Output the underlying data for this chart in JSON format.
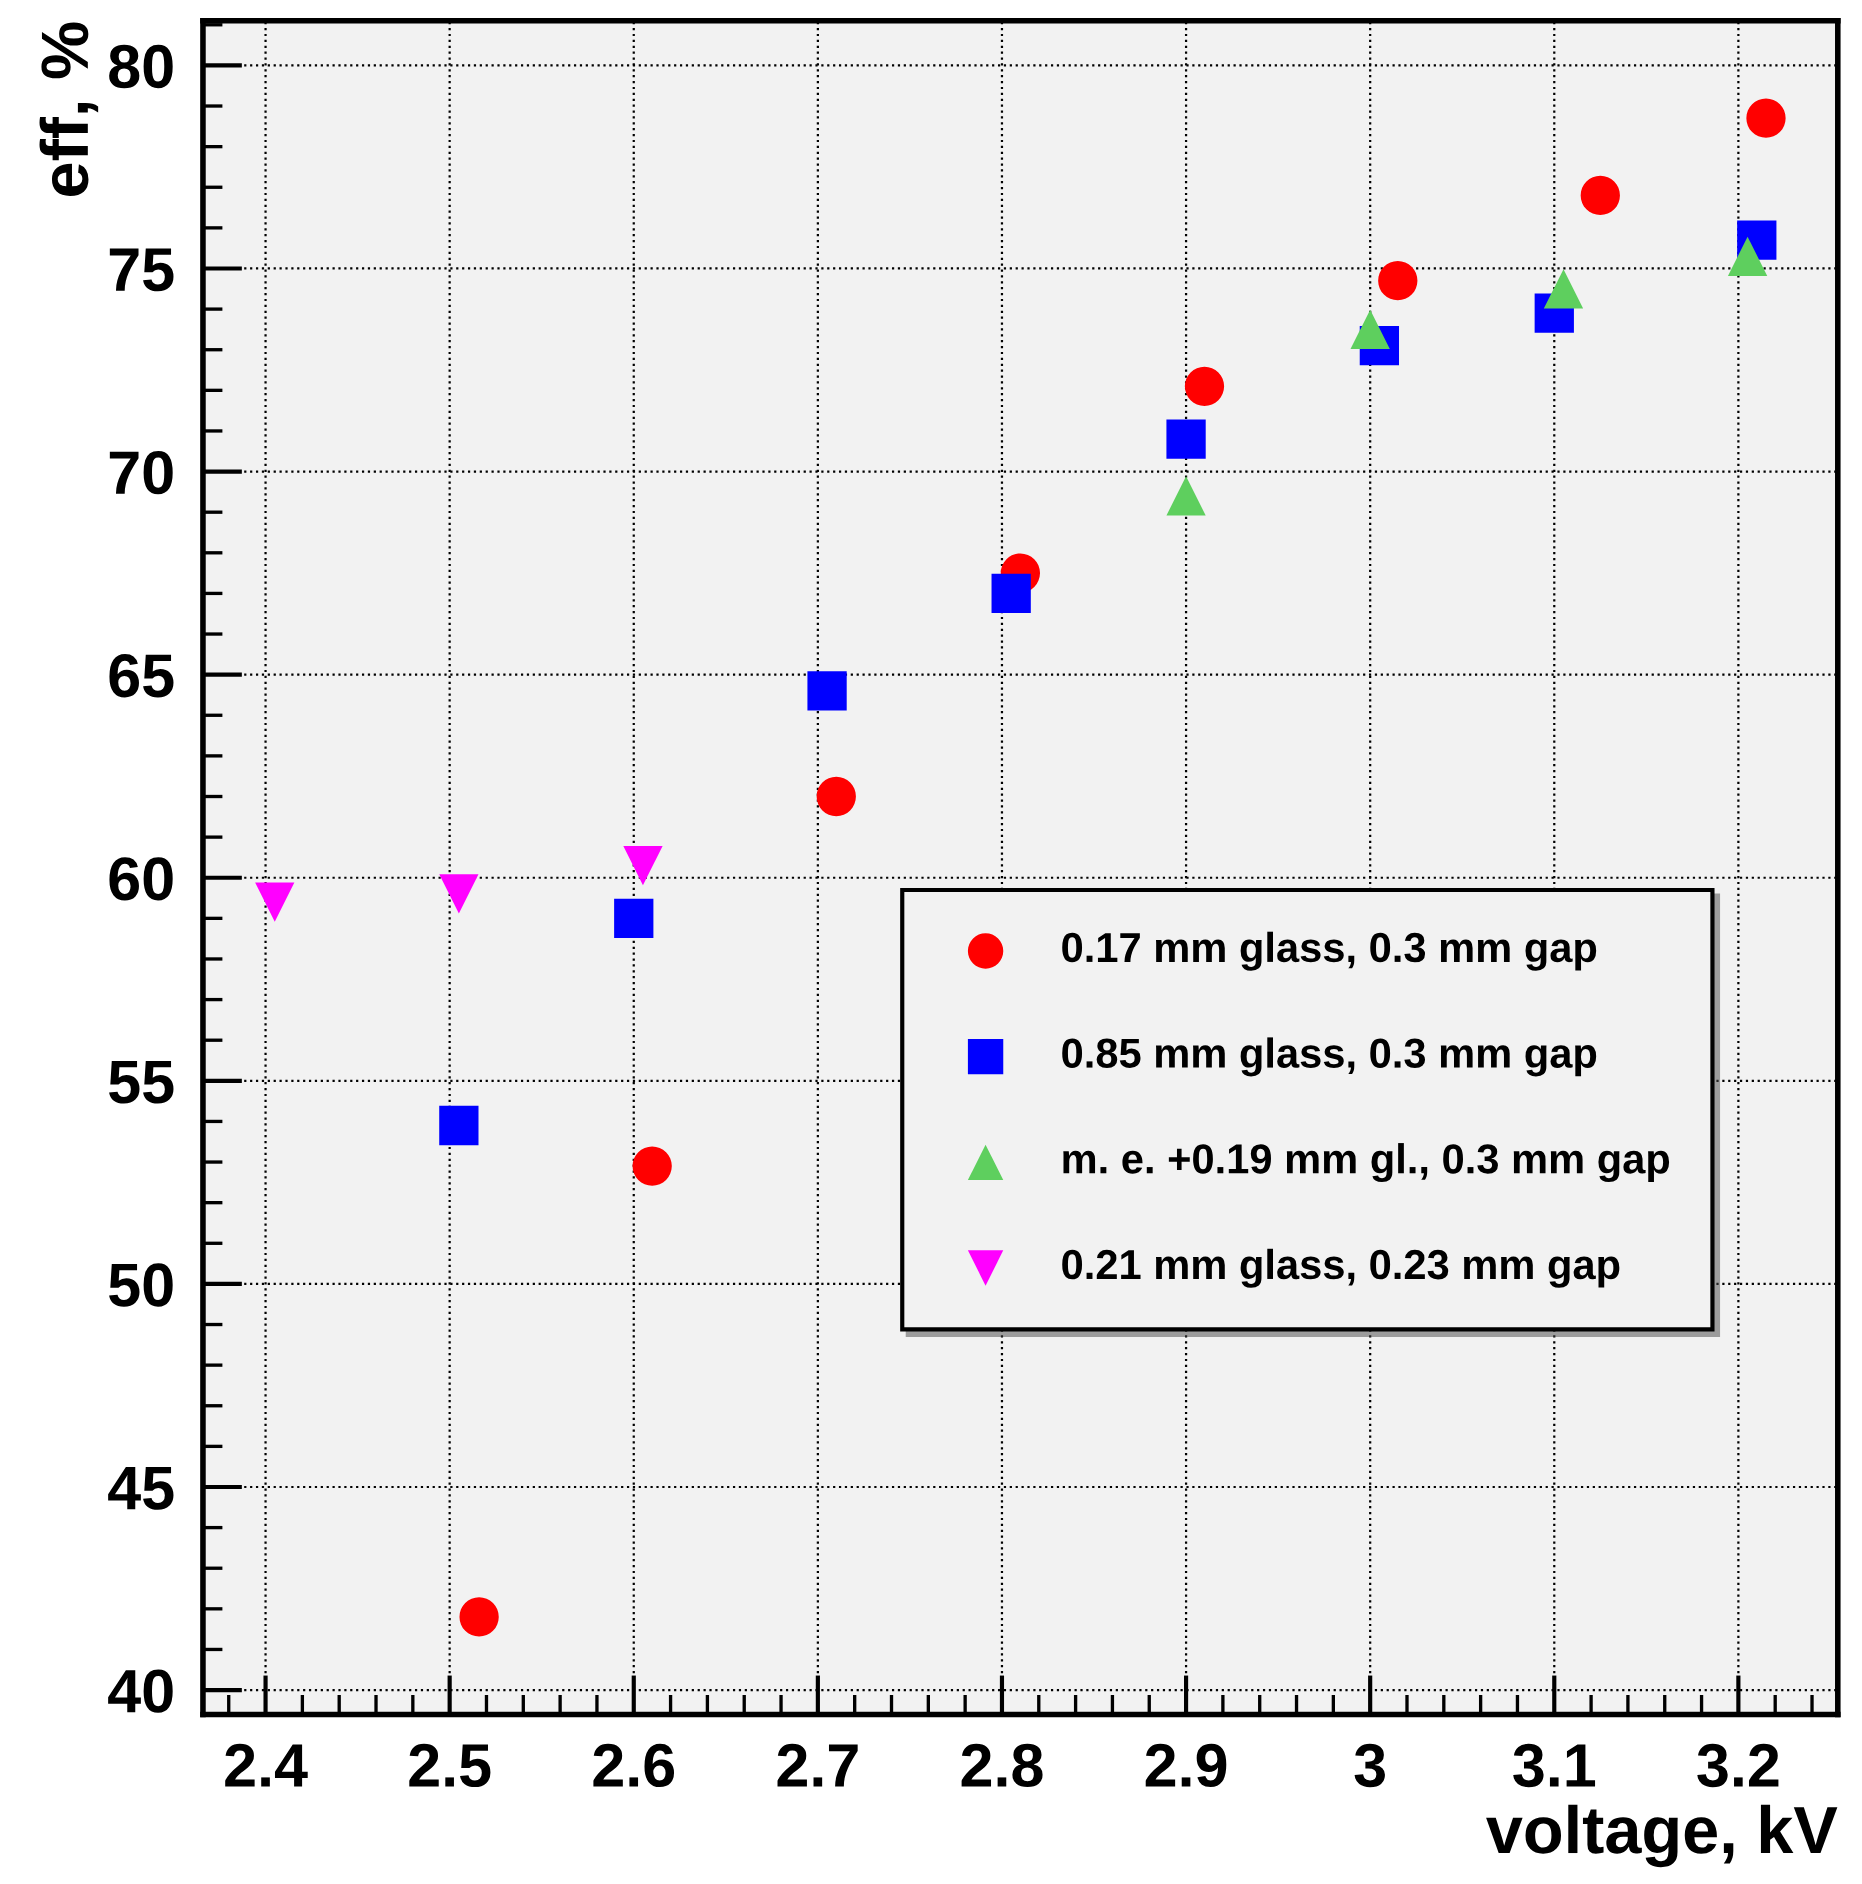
{
  "chart_data": {
    "type": "scatter",
    "xlabel": "voltage, kV",
    "ylabel": "eff, %",
    "xlim": [
      2.366,
      3.254
    ],
    "ylim": [
      39.4,
      81.1
    ],
    "xticks": [
      2.4,
      2.5,
      2.6,
      2.7,
      2.8,
      2.9,
      {
        "value": 3.0,
        "label": "3"
      },
      3.1,
      3.2
    ],
    "yticks": [
      40,
      45,
      50,
      55,
      60,
      65,
      70,
      75,
      80
    ],
    "grid": true,
    "legend": "bottom right",
    "series": [
      {
        "name": "0.17 mm glass, 0.3 mm gap",
        "color": "#ff0000",
        "marker": "circle",
        "x": [
          2.516,
          2.61,
          2.71,
          2.81,
          2.91,
          3.015,
          3.125,
          3.215
        ],
        "values": [
          41.8,
          52.9,
          62.0,
          67.5,
          72.1,
          74.7,
          76.8,
          78.7
        ]
      },
      {
        "name": "0.85 mm glass, 0.3 mm gap",
        "color": "#0000ff",
        "marker": "square",
        "x": [
          2.505,
          2.6,
          2.705,
          2.805,
          2.9,
          3.005,
          3.1,
          3.21
        ],
        "values": [
          53.9,
          59.0,
          64.6,
          67.0,
          70.8,
          73.1,
          73.9,
          75.7
        ]
      },
      {
        "name": "m. e. +0.19 mm gl., 0.3 mm gap",
        "color": "#5ecf5e",
        "marker": "triangle",
        "x": [
          2.9,
          3.0,
          3.105,
          3.205
        ],
        "values": [
          69.4,
          73.5,
          74.5,
          75.3
        ]
      },
      {
        "name": "0.21 mm glass, 0.23 mm gap",
        "color": "#ff00ff",
        "marker": "triangle_down",
        "x": [
          2.405,
          2.505,
          2.605
        ],
        "values": [
          59.4,
          59.6,
          60.3
        ]
      }
    ]
  }
}
